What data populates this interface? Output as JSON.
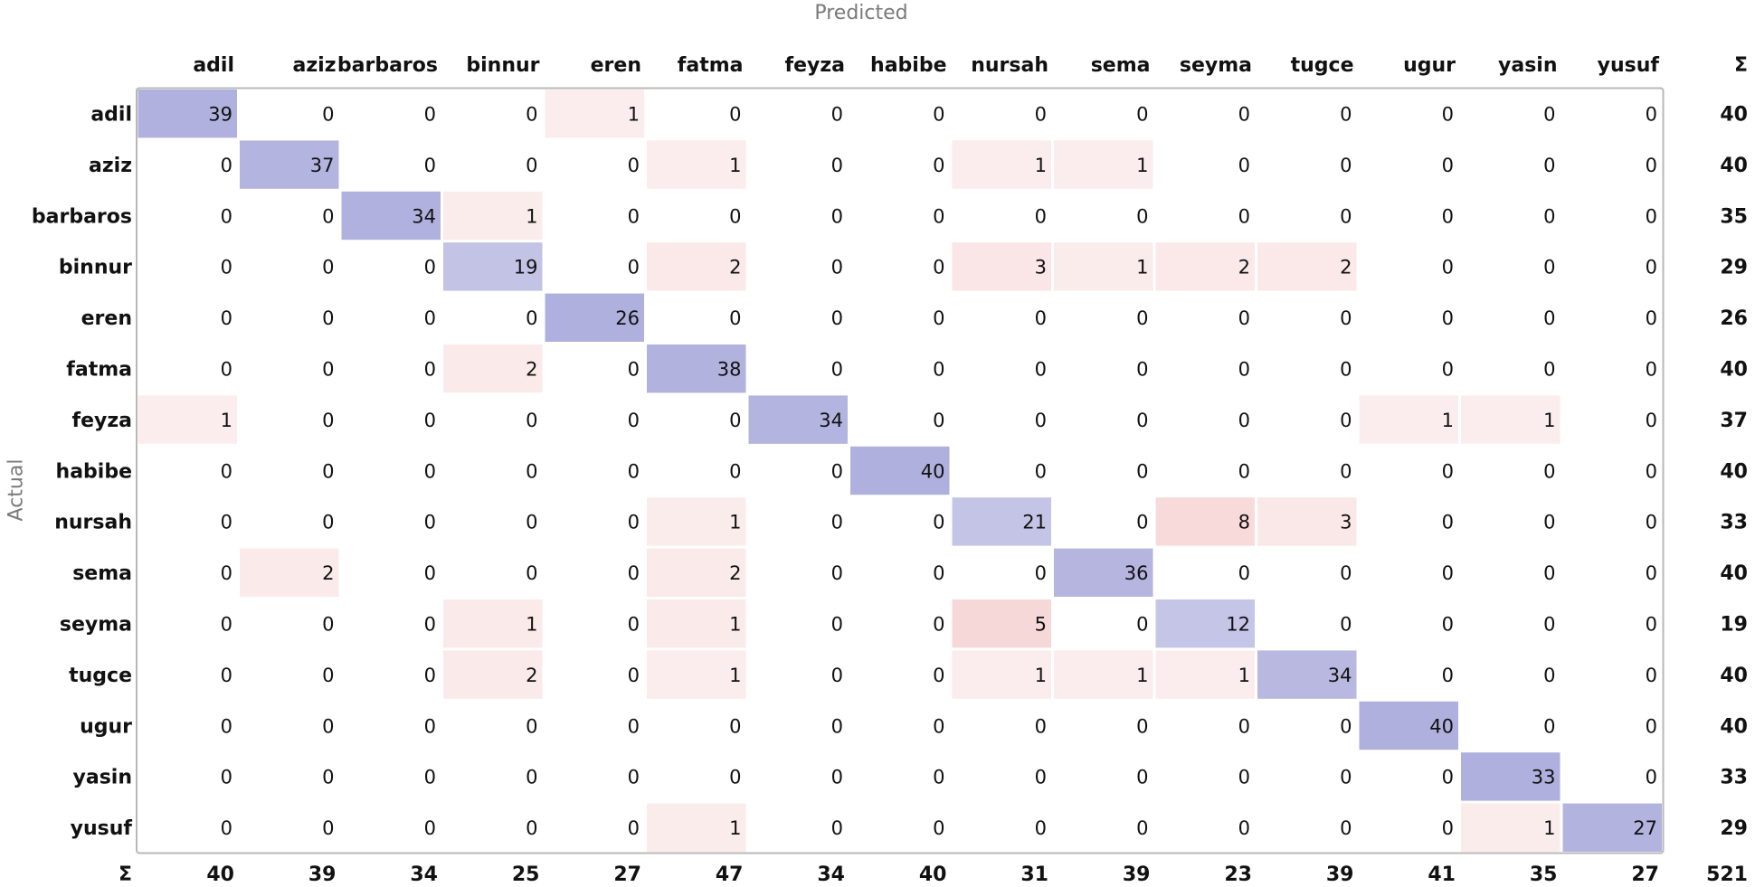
{
  "chart_data": {
    "type": "heatmap",
    "xlabel": "Predicted",
    "ylabel": "Actual",
    "sum_symbol": "Σ",
    "labels": [
      "adil",
      "aziz",
      "barbaros",
      "binnur",
      "eren",
      "fatma",
      "feyza",
      "habibe",
      "nursah",
      "sema",
      "seyma",
      "tugce",
      "ugur",
      "yasin",
      "yusuf"
    ],
    "matrix": [
      [
        39,
        0,
        0,
        0,
        1,
        0,
        0,
        0,
        0,
        0,
        0,
        0,
        0,
        0,
        0
      ],
      [
        0,
        37,
        0,
        0,
        0,
        1,
        0,
        0,
        1,
        1,
        0,
        0,
        0,
        0,
        0
      ],
      [
        0,
        0,
        34,
        1,
        0,
        0,
        0,
        0,
        0,
        0,
        0,
        0,
        0,
        0,
        0
      ],
      [
        0,
        0,
        0,
        19,
        0,
        2,
        0,
        0,
        3,
        1,
        2,
        2,
        0,
        0,
        0
      ],
      [
        0,
        0,
        0,
        0,
        26,
        0,
        0,
        0,
        0,
        0,
        0,
        0,
        0,
        0,
        0
      ],
      [
        0,
        0,
        0,
        2,
        0,
        38,
        0,
        0,
        0,
        0,
        0,
        0,
        0,
        0,
        0
      ],
      [
        1,
        0,
        0,
        0,
        0,
        0,
        34,
        0,
        0,
        0,
        0,
        0,
        1,
        1,
        0
      ],
      [
        0,
        0,
        0,
        0,
        0,
        0,
        0,
        40,
        0,
        0,
        0,
        0,
        0,
        0,
        0
      ],
      [
        0,
        0,
        0,
        0,
        0,
        1,
        0,
        0,
        21,
        0,
        8,
        3,
        0,
        0,
        0
      ],
      [
        0,
        2,
        0,
        0,
        0,
        2,
        0,
        0,
        0,
        36,
        0,
        0,
        0,
        0,
        0
      ],
      [
        0,
        0,
        0,
        1,
        0,
        1,
        0,
        0,
        5,
        0,
        12,
        0,
        0,
        0,
        0
      ],
      [
        0,
        0,
        0,
        2,
        0,
        1,
        0,
        0,
        1,
        1,
        1,
        34,
        0,
        0,
        0
      ],
      [
        0,
        0,
        0,
        0,
        0,
        0,
        0,
        0,
        0,
        0,
        0,
        0,
        40,
        0,
        0
      ],
      [
        0,
        0,
        0,
        0,
        0,
        0,
        0,
        0,
        0,
        0,
        0,
        0,
        0,
        33,
        0
      ],
      [
        0,
        0,
        0,
        0,
        0,
        1,
        0,
        0,
        0,
        0,
        0,
        0,
        0,
        1,
        27
      ]
    ],
    "row_sums": [
      40,
      40,
      35,
      29,
      26,
      40,
      37,
      40,
      33,
      40,
      19,
      40,
      40,
      33,
      29
    ],
    "col_sums": [
      40,
      39,
      34,
      25,
      27,
      47,
      34,
      40,
      31,
      39,
      23,
      39,
      41,
      35,
      27
    ],
    "total": 521,
    "colors": {
      "correct": "#7b7bc8",
      "error": "#e06060",
      "frame": "#b8b8b8"
    }
  }
}
